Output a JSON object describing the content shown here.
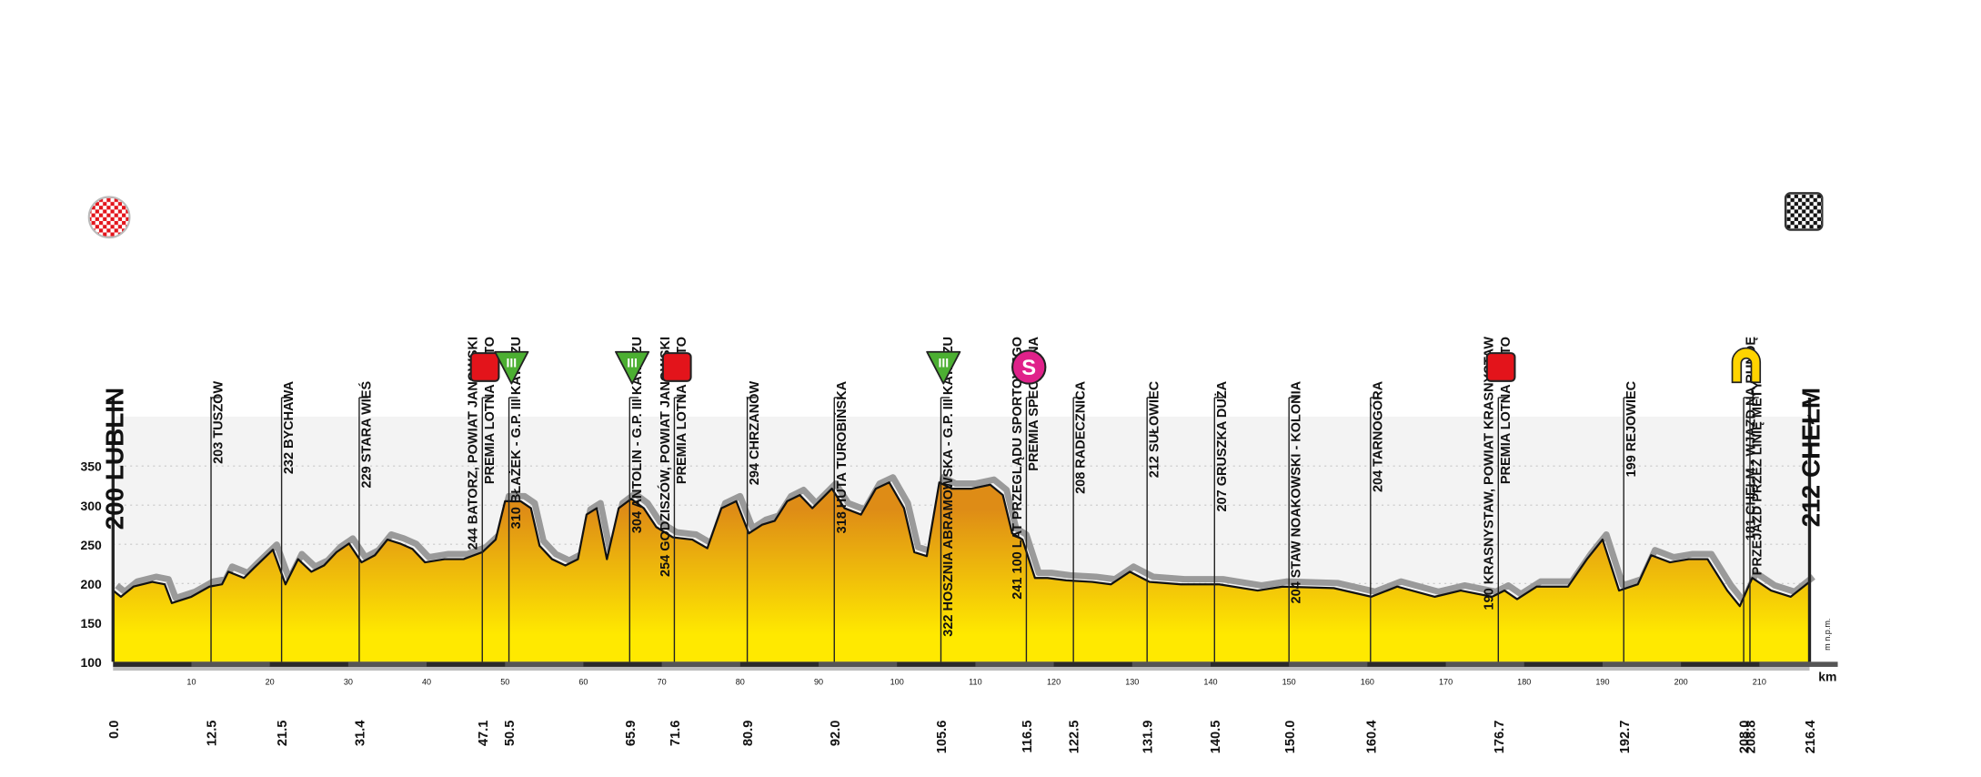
{
  "chart_data": {
    "type": "area",
    "ylabel": "m n.p.m.",
    "xlabel": "km",
    "ylim": [
      100,
      413
    ],
    "yticks": [
      100,
      150,
      200,
      250,
      300,
      350
    ],
    "xlim": [
      0,
      216.4
    ],
    "xticks": [
      10,
      20,
      30,
      40,
      50,
      60,
      70,
      80,
      90,
      100,
      110,
      120,
      130,
      140,
      150,
      160,
      170,
      180,
      190,
      200,
      210
    ],
    "grid": true,
    "colors": {
      "top": "#de8c16",
      "bottom": "#ffe900",
      "line": "#111111",
      "shadow": "#9a9a9a",
      "sprint": "#e3141b",
      "climb": "#4caf32",
      "special": "#e0218a",
      "lap": "#ffd400"
    },
    "x": [
      0,
      1,
      2.6,
      5,
      6.6,
      7.5,
      10,
      12.3,
      13.9,
      14.7,
      16.7,
      18,
      20.4,
      22,
      23.6,
      25.3,
      26.9,
      28.5,
      30.1,
      31.7,
      33.4,
      35,
      36.6,
      38.2,
      39.8,
      42.3,
      44.7,
      47.1,
      48.8,
      50,
      52,
      53.3,
      54.4,
      56,
      57.7,
      59.3,
      60.4,
      61.7,
      63,
      64.5,
      66.1,
      67.7,
      69.3,
      71.4,
      73.9,
      75.8,
      77.6,
      79.5,
      81.1,
      82.8,
      84.4,
      86,
      87.6,
      89.2,
      91.7,
      93.3,
      95.4,
      97.3,
      99,
      100.9,
      102.2,
      103.8,
      105.4,
      107,
      109.5,
      111.9,
      113.5,
      114.7,
      116,
      117.6,
      119.2,
      121.6,
      124.9,
      127.3,
      129.7,
      132.2,
      136.2,
      141.1,
      146,
      149.2,
      155.7,
      160.5,
      163.8,
      168.6,
      171.9,
      175.9,
      177.5,
      179.1,
      181.6,
      185.6,
      188,
      190,
      192.1,
      194.5,
      196.2,
      198.6,
      201,
      203.4,
      205.9,
      207.5,
      209.1,
      211.5,
      214,
      216.4
    ],
    "values": [
      191,
      183,
      196,
      202,
      199,
      175,
      183,
      196,
      199,
      215,
      207,
      220,
      243,
      199,
      231,
      215,
      223,
      240,
      251,
      227,
      236,
      256,
      251,
      244,
      227,
      231,
      231,
      240,
      256,
      305,
      305,
      296,
      248,
      231,
      223,
      231,
      288,
      296,
      231,
      296,
      308,
      296,
      272,
      259,
      256,
      245,
      296,
      305,
      264,
      275,
      280,
      305,
      313,
      296,
      321,
      296,
      288,
      321,
      329,
      296,
      240,
      235,
      329,
      321,
      321,
      326,
      313,
      264,
      256,
      207,
      207,
      204,
      202,
      199,
      215,
      202,
      199,
      199,
      191,
      196,
      194,
      183,
      196,
      183,
      191,
      183,
      191,
      180,
      196,
      196,
      231,
      256,
      191,
      199,
      236,
      227,
      231,
      231,
      191,
      171,
      207,
      191,
      183,
      202
    ],
    "start": {
      "name": "200 LUBLIN",
      "km": {
        "value": 0,
        "label": "0.0"
      }
    },
    "finish": {
      "name": "212 CHEŁM",
      "km": 216.4
    },
    "waypoints": [
      {
        "km": 12.5,
        "name": "203 TUSZÓW"
      },
      {
        "km": 21.5,
        "name": "232 BYCHAWA"
      },
      {
        "km": 31.4,
        "name": "229 STARA WIEŚ"
      },
      {
        "km": 47.1,
        "name": "244 BATORZ, POWIAT JANOWSKI",
        "note": "PREMIA LOTNA LOTTO",
        "icon": "sprint"
      },
      {
        "km": 50.5,
        "name": "310 BŁAŻEK - G.P. III KAT. PZU",
        "icon": "climb",
        "icon_text": "III"
      },
      {
        "km": 65.9,
        "name": "304 ANTOLIN - G.P. III KAT. PZU",
        "icon": "climb",
        "icon_text": "III"
      },
      {
        "km": 71.6,
        "name": "254 GODZISZÓW, POWIAT JANOWSKI",
        "note": "PREMIA LOTNA LOTTO",
        "icon": "sprint"
      },
      {
        "km": 80.9,
        "name": "294 CHRZANÓW"
      },
      {
        "km": {
          "value": 92,
          "label": "92.0"
        },
        "name": "318 HUTA TUROBIŃSKA"
      },
      {
        "km": 105.6,
        "name": "322 HOSZNIA ABRAMOWSKA - G.P. III KAT. PZU",
        "icon": "climb",
        "icon_text": "III"
      },
      {
        "km": 116.5,
        "name": "241 100 LAT PRZEGLĄDU SPORTOWEGO",
        "note": "PREMIA SPECJALNA",
        "icon": "special",
        "icon_text": "S"
      },
      {
        "km": 122.5,
        "name": "208 RADECZNICA"
      },
      {
        "km": 131.9,
        "name": "212 SUŁOWIEC"
      },
      {
        "km": 140.5,
        "name": "207 GRUSZKA DUŻA"
      },
      {
        "km": {
          "value": 150,
          "label": "150.0"
        },
        "name": "204 STAW NOAKOWSKI - KOLONIA"
      },
      {
        "km": 160.4,
        "name": "204 TARNOGÓRA"
      },
      {
        "km": 176.7,
        "name": "190 KRASNYSTAW, POWIAT KRASNYSTAW",
        "note": "PREMIA LOTNA LOTTO",
        "icon": "sprint"
      },
      {
        "km": 192.7,
        "name": "199 REJOWIEC"
      },
      {
        "km": {
          "value": 208,
          "label": "208.0"
        },
        "name": "181 CHEŁM - WJAZD NA RUNDĘ",
        "icon": "lap"
      },
      {
        "km": 208.8,
        "name": "PRZEJAZD PRZEZ LINIĘ METY"
      }
    ]
  }
}
